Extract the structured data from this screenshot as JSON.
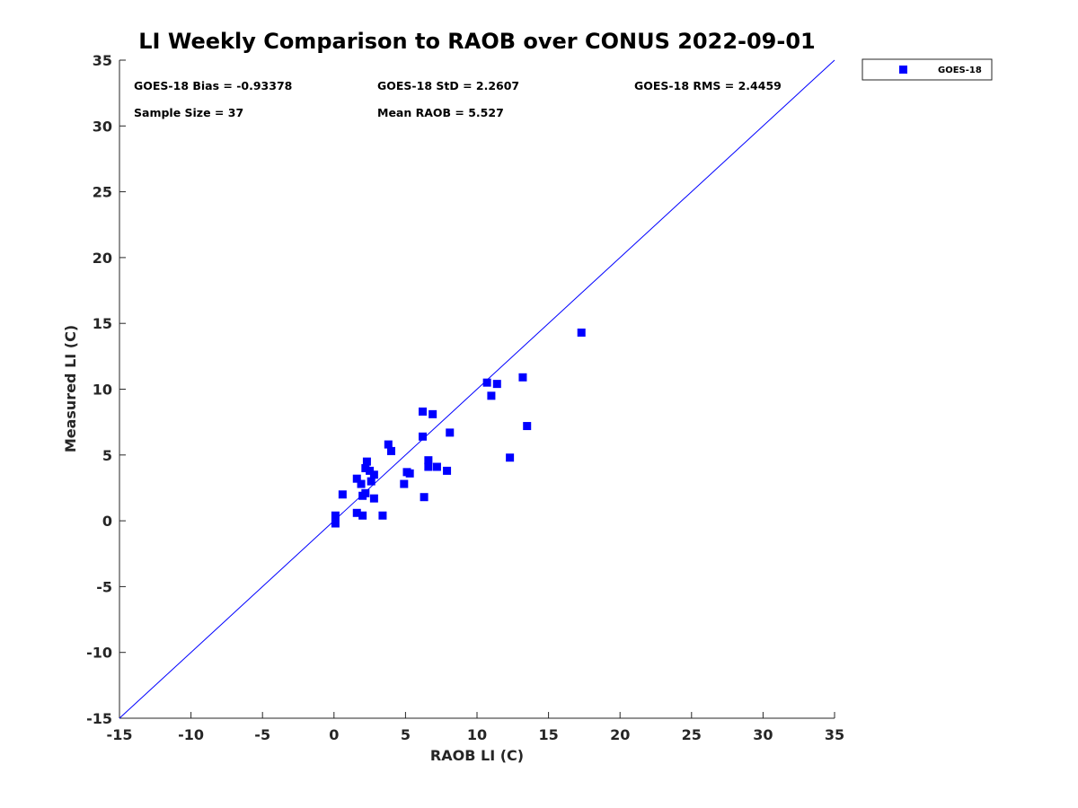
{
  "chart_data": {
    "type": "scatter",
    "title": "LI Weekly Comparison to RAOB over CONUS 2022-09-01",
    "xlabel": "RAOB LI (C)",
    "ylabel": "Measured LI (C)",
    "xlim": [
      -15,
      35
    ],
    "ylim": [
      -15,
      35
    ],
    "xticks": [
      -15,
      -10,
      -5,
      0,
      5,
      10,
      15,
      20,
      25,
      30,
      35
    ],
    "yticks": [
      -15,
      -10,
      -5,
      0,
      5,
      10,
      15,
      20,
      25,
      30,
      35
    ],
    "grid": false,
    "legend_position": "outside-top-right",
    "reference_line": {
      "name": "1:1 line",
      "color": "#0000ff"
    },
    "stats": {
      "bias": "GOES-18 Bias = -0.93378",
      "std": "GOES-18 StD = 2.2607",
      "rms": "GOES-18 RMS = 2.4459",
      "sample_size": "Sample Size = 37",
      "mean_raob": "Mean RAOB = 5.527"
    },
    "series": [
      {
        "name": "GOES-18",
        "color": "#0000ff",
        "marker": "square",
        "points": [
          [
            0.1,
            0.4
          ],
          [
            0.1,
            -0.2
          ],
          [
            0.6,
            2.0
          ],
          [
            1.6,
            0.6
          ],
          [
            2.0,
            0.4
          ],
          [
            1.6,
            3.2
          ],
          [
            1.9,
            2.8
          ],
          [
            2.0,
            1.9
          ],
          [
            2.2,
            2.1
          ],
          [
            2.2,
            4.0
          ],
          [
            2.3,
            4.5
          ],
          [
            2.5,
            3.8
          ],
          [
            2.6,
            3.0
          ],
          [
            2.8,
            3.5
          ],
          [
            2.8,
            1.7
          ],
          [
            3.4,
            0.4
          ],
          [
            3.8,
            5.8
          ],
          [
            4.0,
            5.3
          ],
          [
            4.9,
            2.8
          ],
          [
            5.1,
            3.7
          ],
          [
            5.3,
            3.6
          ],
          [
            6.2,
            8.3
          ],
          [
            6.2,
            6.4
          ],
          [
            6.3,
            1.8
          ],
          [
            6.6,
            4.6
          ],
          [
            6.6,
            4.1
          ],
          [
            6.9,
            8.1
          ],
          [
            7.2,
            4.1
          ],
          [
            7.9,
            3.8
          ],
          [
            8.1,
            6.7
          ],
          [
            10.7,
            10.5
          ],
          [
            11.0,
            9.5
          ],
          [
            11.4,
            10.4
          ],
          [
            12.3,
            4.8
          ],
          [
            13.2,
            10.9
          ],
          [
            13.5,
            7.2
          ],
          [
            17.3,
            14.3
          ]
        ]
      }
    ]
  }
}
